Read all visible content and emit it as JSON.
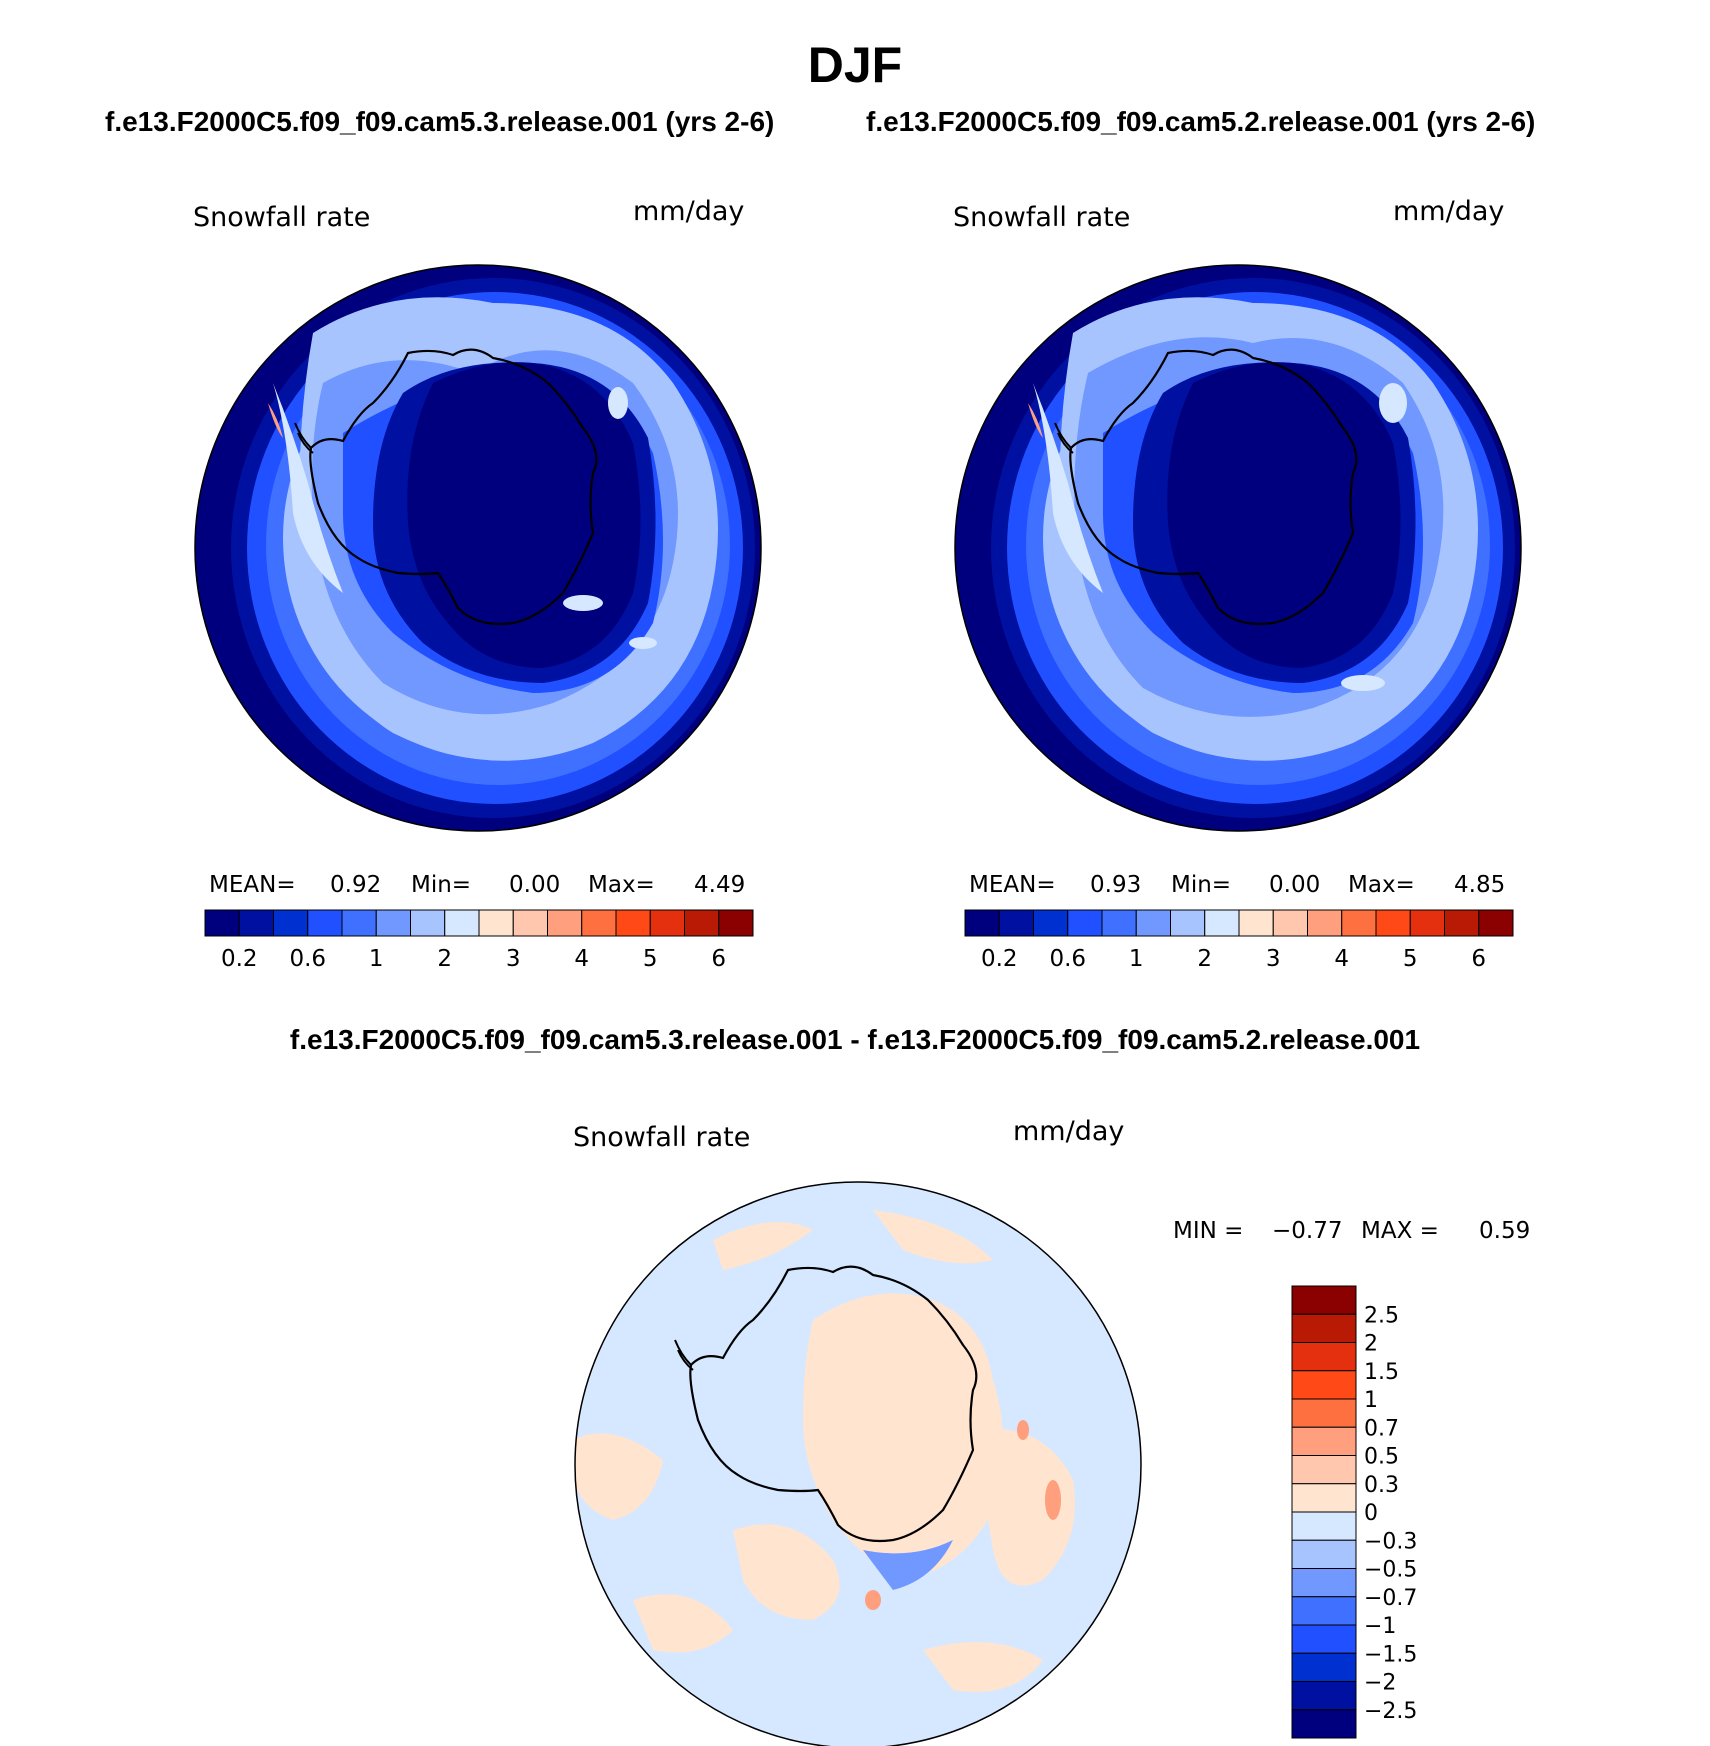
{
  "title": "DJF",
  "panels": [
    {
      "case_name": "f.e13.F2000C5.f09_f09.cam5.3.release.001 (yrs 2-6)",
      "variable": "Snowfall rate",
      "units": "mm/day",
      "mean_label": "MEAN=",
      "mean": "0.92",
      "min_label": "Min=",
      "min": "0.00",
      "max_label": "Max=",
      "max": "4.49"
    },
    {
      "case_name": "f.e13.F2000C5.f09_f09.cam5.2.release.001 (yrs 2-6)",
      "variable": "Snowfall rate",
      "units": "mm/day",
      "mean_label": "MEAN=",
      "mean": "0.93",
      "min_label": "Min=",
      "min": "0.00",
      "max_label": "Max=",
      "max": "4.85"
    }
  ],
  "difference": {
    "title": "f.e13.F2000C5.f09_f09.cam5.3.release.001 - f.e13.F2000C5.f09_f09.cam5.2.release.001",
    "variable": "Snowfall rate",
    "units": "mm/day",
    "min_label": "MIN =",
    "min": "−0.77",
    "max_label": "MAX =",
    "max": "0.59"
  },
  "colorbar_main": {
    "colors": [
      "#00007f",
      "#0010a0",
      "#0030d0",
      "#2050ff",
      "#4070ff",
      "#7098ff",
      "#a8c4ff",
      "#d6e8ff",
      "#ffe4d0",
      "#ffc7ad",
      "#ff9f7e",
      "#ff7040",
      "#ff4a18",
      "#e53010",
      "#b81a05",
      "#8b0000"
    ],
    "tick_labels": [
      "0.2",
      "0.6",
      "1",
      "2",
      "3",
      "4",
      "5",
      "6"
    ]
  },
  "colorbar_diff": {
    "colors": [
      "#8b0000",
      "#b81a05",
      "#e53010",
      "#ff4a18",
      "#ff7040",
      "#ff9f7e",
      "#ffc7ad",
      "#ffe4d0",
      "#d6e8ff",
      "#a8c4ff",
      "#7098ff",
      "#4070ff",
      "#2050ff",
      "#0030d0",
      "#0010a0",
      "#00007f"
    ],
    "tick_labels": [
      "2.5",
      "2",
      "1.5",
      "1",
      "0.7",
      "0.5",
      "0.3",
      "0",
      "−0.3",
      "−0.5",
      "−0.7",
      "−1",
      "−1.5",
      "−2",
      "−2.5"
    ]
  },
  "map_colors": {
    "deep": "#00007f",
    "dark": "#0010a0",
    "mid": "#2050ff",
    "medium": "#4070ff",
    "light": "#7098ff",
    "pale": "#a8c4ff",
    "palest": "#d6e8ff",
    "peach": "#ffe4d0",
    "salmon": "#ff9f7e",
    "orange": "#ff7040"
  }
}
